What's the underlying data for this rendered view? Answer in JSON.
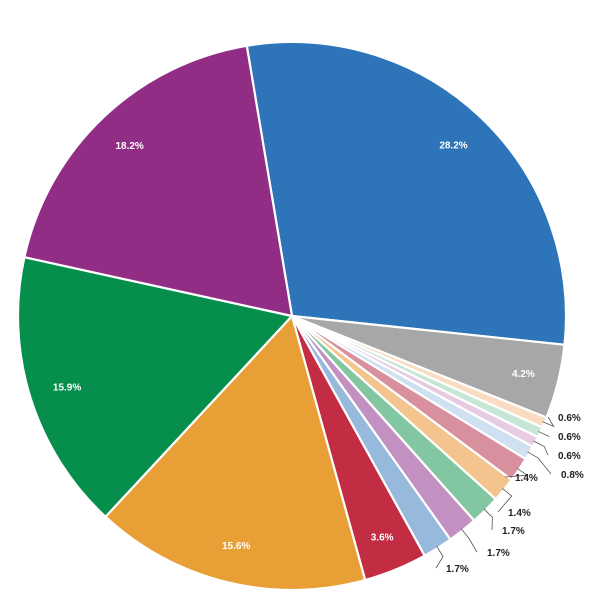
{
  "chart_data": {
    "type": "pie",
    "slices": [
      {
        "value": 28.2,
        "label": "28.2%",
        "color": "#2d74b9"
      },
      {
        "value": 4.2,
        "label": "4.2%",
        "color": "#a6a7a6"
      },
      {
        "value": 0.6,
        "label": "0.6%",
        "color": "#f9dcc2"
      },
      {
        "value": 0.6,
        "label": "0.6%",
        "color": "#c6e6d6"
      },
      {
        "value": 0.6,
        "label": "0.6%",
        "color": "#e6cbe3"
      },
      {
        "value": 0.8,
        "label": "0.8%",
        "color": "#cfe0f1"
      },
      {
        "value": 1.4,
        "label": "1.4%",
        "color": "#d9909e"
      },
      {
        "value": 1.4,
        "label": "1.4%",
        "color": "#f3c48d"
      },
      {
        "value": 1.7,
        "label": "1.7%",
        "color": "#83c6a2"
      },
      {
        "value": 1.7,
        "label": "1.7%",
        "color": "#c291c1"
      },
      {
        "value": 1.7,
        "label": "1.7%",
        "color": "#97b9dc"
      },
      {
        "value": 3.6,
        "label": "3.6%",
        "color": "#c22d44"
      },
      {
        "value": 15.6,
        "label": "15.6%",
        "color": "#e89f35"
      },
      {
        "value": 15.9,
        "label": "15.9%",
        "color": "#058e4c"
      },
      {
        "value": 18.2,
        "label": "18.2%",
        "color": "#922d85"
      }
    ]
  }
}
